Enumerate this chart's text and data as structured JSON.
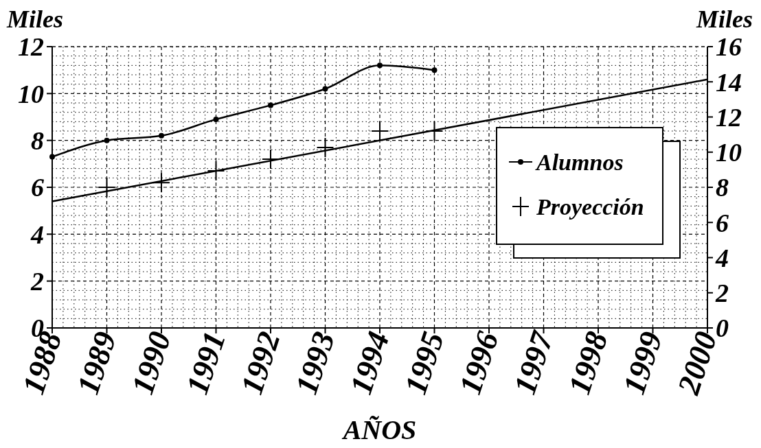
{
  "chart_data": {
    "type": "line",
    "xlabel": "AÑOS",
    "ylabel": "Miles",
    "y2label": "Miles",
    "xlim": [
      1988,
      2000
    ],
    "xticks": [
      1988,
      1989,
      1990,
      1991,
      1992,
      1993,
      1994,
      1995,
      1996,
      1997,
      1998,
      1999,
      2000
    ],
    "ylim": [
      0,
      12
    ],
    "yticks": [
      0,
      2,
      4,
      6,
      8,
      10,
      12
    ],
    "y2lim": [
      0,
      16
    ],
    "y2ticks": [
      0,
      2,
      4,
      6,
      8,
      10,
      12,
      14,
      16
    ],
    "grid": true,
    "legend": "right",
    "series": [
      {
        "name": "Alumnos",
        "color": "#000000",
        "marker": "circle",
        "x": [
          1988,
          1989,
          1990,
          1991,
          1992,
          1993,
          1994,
          1995
        ],
        "values": [
          7.3,
          8.0,
          8.2,
          8.9,
          9.5,
          10.2,
          11.2,
          11.0
        ]
      },
      {
        "name": "Proyección",
        "type": "scatter",
        "color": "#000000",
        "marker": "cross",
        "x": [
          1989,
          1990,
          1991,
          1992,
          1993,
          1994,
          1995
        ],
        "values": [
          6.0,
          6.2,
          6.7,
          7.2,
          7.7,
          8.4,
          8.4
        ]
      },
      {
        "color": "#000000",
        "marker": "none",
        "x": [
          1988,
          2000
        ],
        "values": [
          5.4,
          10.6
        ]
      }
    ]
  }
}
